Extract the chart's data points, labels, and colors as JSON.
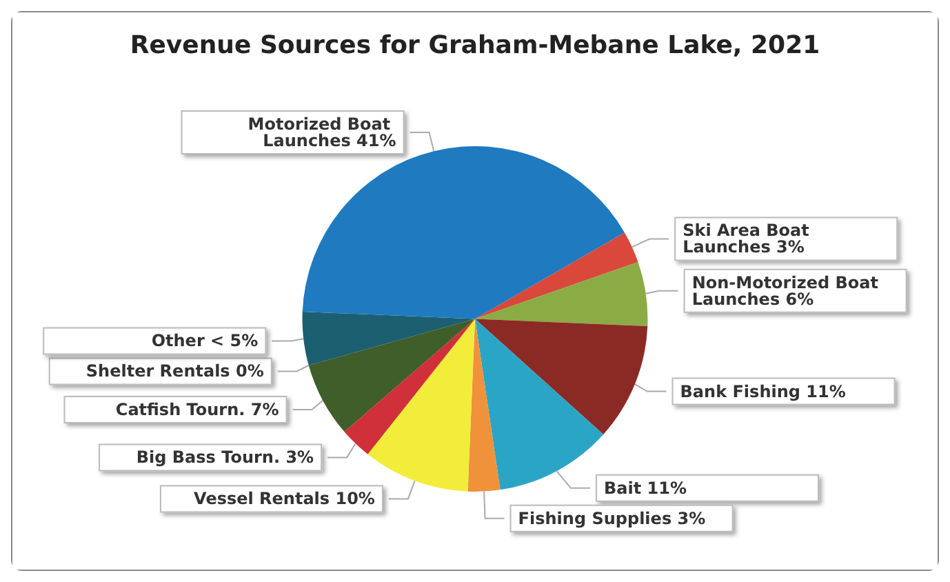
{
  "chart_data": {
    "type": "pie",
    "title": "Revenue Sources for Graham-Mebane Lake, 2021",
    "categories": [
      "Ski Area Boat Launches",
      "Non-Motorized Boat Launches",
      "Bank Fishing",
      "Bait",
      "Fishing Supplies",
      "Vessel Rentals",
      "Big Bass Tourn.",
      "Catfish Tourn.",
      "Shelter Rentals",
      "Other",
      "Motorized Boat Launches"
    ],
    "values": [
      3,
      6,
      11,
      11,
      3,
      10,
      3,
      7,
      0,
      5,
      41
    ],
    "value_labels": [
      "3%",
      "6%",
      "11%",
      "11%",
      "3%",
      "10%",
      "3%",
      "7%",
      "0%",
      "< 5%",
      "41%"
    ],
    "colors": [
      "#d9483b",
      "#8bab44",
      "#8b2a24",
      "#2ba5c6",
      "#f0923a",
      "#f2ec3a",
      "#d0303a",
      "#3f5e2a",
      "#6a4a8a",
      "#1c5f70",
      "#1f7ac0"
    ]
  }
}
